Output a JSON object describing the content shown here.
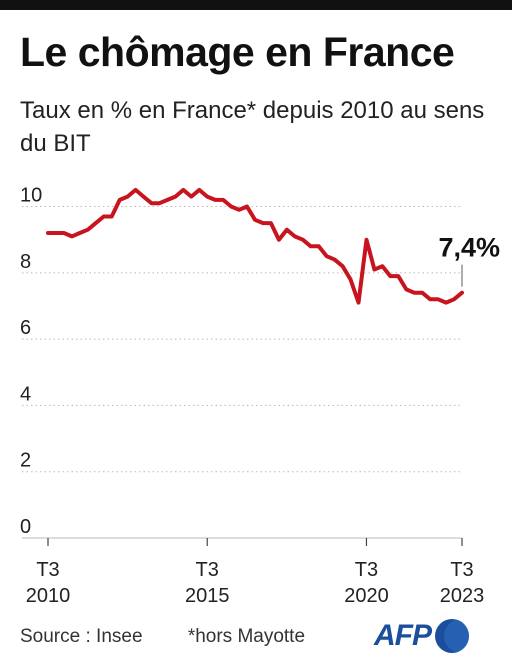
{
  "header": {
    "title": "Le chômage en France",
    "subtitle": "Taux en % en France* depuis 2010 au sens du BIT"
  },
  "footer": {
    "source": "Source : Insee",
    "note": "*hors Mayotte",
    "logo": "AFP"
  },
  "colors": {
    "line": "#c8141e",
    "grid": "#bbbbbb",
    "logo": "#1b4f9c"
  },
  "chart_data": {
    "type": "line",
    "title": "Le chômage en France",
    "subtitle": "Taux en % en France* depuis 2010 au sens du BIT",
    "ylim": [
      0,
      10.8
    ],
    "yticks": [
      0,
      2,
      4,
      6,
      8,
      10
    ],
    "grid": true,
    "xticks": [
      {
        "line1": "T3",
        "line2": "2010",
        "t": 2010.5
      },
      {
        "line1": "T3",
        "line2": "2015",
        "t": 2015.5
      },
      {
        "line1": "T3",
        "line2": "2020",
        "t": 2020.5
      },
      {
        "line1": "T3",
        "line2": "2023",
        "t": 2023.5
      }
    ],
    "annotation": {
      "text": "7,4%",
      "t": 2023.5,
      "y": 7.4
    },
    "series": [
      {
        "x": [
          "2010-T3",
          "2010-T4",
          "2011-T1",
          "2011-T2",
          "2011-T3",
          "2011-T4",
          "2012-T1",
          "2012-T2",
          "2012-T3",
          "2012-T4",
          "2013-T1",
          "2013-T2",
          "2013-T3",
          "2013-T4",
          "2014-T1",
          "2014-T2",
          "2014-T3",
          "2014-T4",
          "2015-T1",
          "2015-T2",
          "2015-T3",
          "2015-T4",
          "2016-T1",
          "2016-T2",
          "2016-T3",
          "2016-T4",
          "2017-T1",
          "2017-T2",
          "2017-T3",
          "2017-T4",
          "2018-T1",
          "2018-T2",
          "2018-T3",
          "2018-T4",
          "2019-T1",
          "2019-T2",
          "2019-T3",
          "2019-T4",
          "2020-T1",
          "2020-T2",
          "2020-T3",
          "2020-T4",
          "2021-T1",
          "2021-T2",
          "2021-T3",
          "2021-T4",
          "2022-T1",
          "2022-T2",
          "2022-T3",
          "2022-T4",
          "2023-T1",
          "2023-T2",
          "2023-T3"
        ],
        "y": [
          9.2,
          9.2,
          9.2,
          9.1,
          9.2,
          9.3,
          9.5,
          9.7,
          9.7,
          10.2,
          10.3,
          10.5,
          10.3,
          10.1,
          10.1,
          10.2,
          10.3,
          10.5,
          10.3,
          10.5,
          10.3,
          10.2,
          10.2,
          10.0,
          9.9,
          10.0,
          9.6,
          9.5,
          9.5,
          9.0,
          9.3,
          9.1,
          9.0,
          8.8,
          8.8,
          8.5,
          8.4,
          8.2,
          7.8,
          7.1,
          9.0,
          8.1,
          8.2,
          7.9,
          7.9,
          7.5,
          7.4,
          7.4,
          7.2,
          7.2,
          7.1,
          7.2,
          7.4
        ]
      }
    ]
  }
}
